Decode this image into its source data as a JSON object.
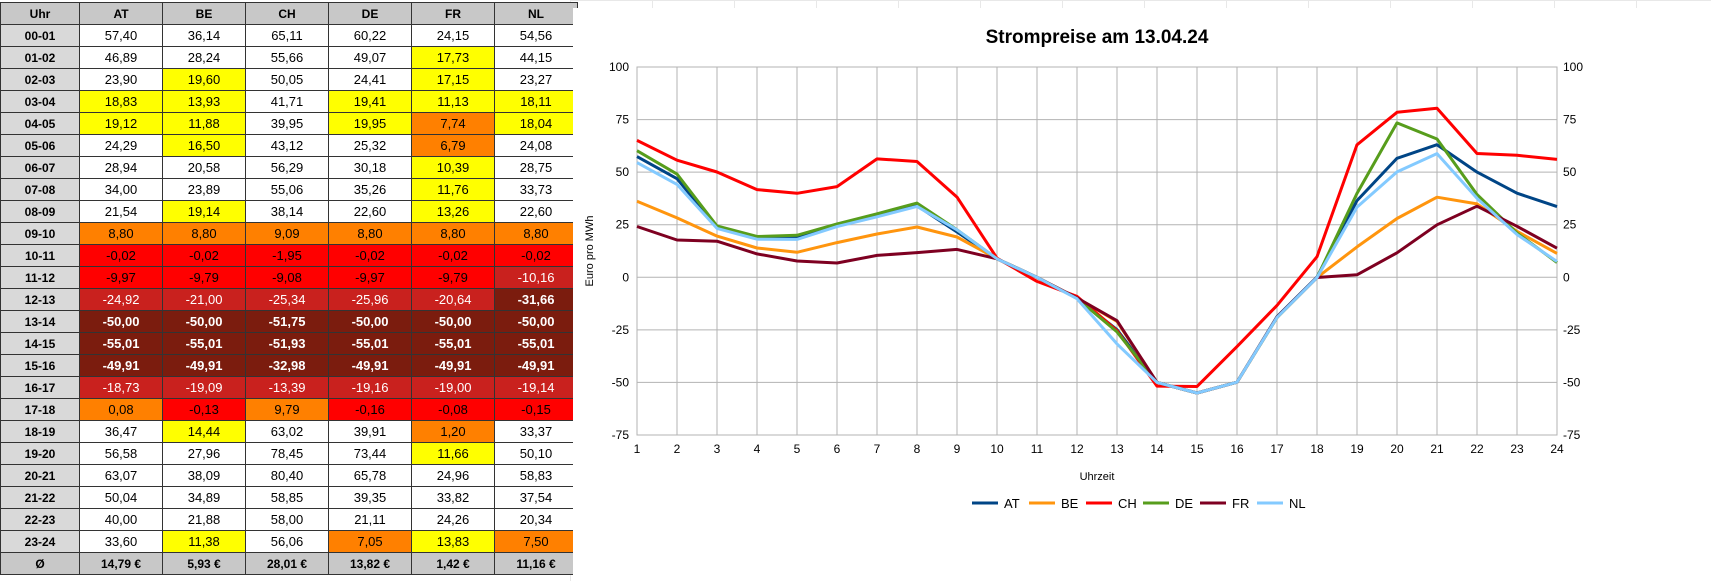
{
  "table": {
    "header": [
      "Uhr",
      "AT",
      "BE",
      "CH",
      "DE",
      "FR",
      "NL"
    ],
    "rows": [
      {
        "hour": "00-01",
        "vals": [
          "57,40",
          "36,14",
          "65,11",
          "60,22",
          "24,15",
          "54,56"
        ],
        "cls": [
          "w",
          "w",
          "w",
          "w",
          "w",
          "w"
        ]
      },
      {
        "hour": "01-02",
        "vals": [
          "46,89",
          "28,24",
          "55,66",
          "49,07",
          "17,73",
          "44,15"
        ],
        "cls": [
          "w",
          "w",
          "w",
          "w",
          "y",
          "w"
        ]
      },
      {
        "hour": "02-03",
        "vals": [
          "23,90",
          "19,60",
          "50,05",
          "24,41",
          "17,15",
          "23,27"
        ],
        "cls": [
          "w",
          "y",
          "w",
          "w",
          "y",
          "w"
        ]
      },
      {
        "hour": "03-04",
        "vals": [
          "18,83",
          "13,93",
          "41,71",
          "19,41",
          "11,13",
          "18,11"
        ],
        "cls": [
          "y",
          "y",
          "w",
          "y",
          "y",
          "y"
        ]
      },
      {
        "hour": "04-05",
        "vals": [
          "19,12",
          "11,88",
          "39,95",
          "19,95",
          "7,74",
          "18,04"
        ],
        "cls": [
          "y",
          "y",
          "w",
          "y",
          "o",
          "y"
        ]
      },
      {
        "hour": "05-06",
        "vals": [
          "24,29",
          "16,50",
          "43,12",
          "25,32",
          "6,79",
          "24,08"
        ],
        "cls": [
          "w",
          "y",
          "w",
          "w",
          "o",
          "w"
        ]
      },
      {
        "hour": "06-07",
        "vals": [
          "28,94",
          "20,58",
          "56,29",
          "30,18",
          "10,39",
          "28,75"
        ],
        "cls": [
          "w",
          "w",
          "w",
          "w",
          "y",
          "w"
        ]
      },
      {
        "hour": "07-08",
        "vals": [
          "34,00",
          "23,89",
          "55,06",
          "35,26",
          "11,76",
          "33,73"
        ],
        "cls": [
          "w",
          "w",
          "w",
          "w",
          "y",
          "w"
        ]
      },
      {
        "hour": "08-09",
        "vals": [
          "21,54",
          "19,14",
          "38,14",
          "22,60",
          "13,26",
          "22,60"
        ],
        "cls": [
          "w",
          "y",
          "w",
          "w",
          "y",
          "w"
        ]
      },
      {
        "hour": "09-10",
        "vals": [
          "8,80",
          "8,80",
          "9,09",
          "8,80",
          "8,80",
          "8,80"
        ],
        "cls": [
          "o",
          "o",
          "o",
          "o",
          "o",
          "o"
        ]
      },
      {
        "hour": "10-11",
        "vals": [
          "-0,02",
          "-0,02",
          "-1,95",
          "-0,02",
          "-0,02",
          "-0,02"
        ],
        "cls": [
          "r",
          "r",
          "r",
          "r",
          "r",
          "r"
        ]
      },
      {
        "hour": "11-12",
        "vals": [
          "-9,97",
          "-9,79",
          "-9,08",
          "-9,97",
          "-9,79",
          "-10,16"
        ],
        "cls": [
          "r",
          "r",
          "r",
          "r",
          "r",
          "dr"
        ]
      },
      {
        "hour": "12-13",
        "vals": [
          "-24,92",
          "-21,00",
          "-25,34",
          "-25,96",
          "-20,64",
          "-31,66"
        ],
        "cls": [
          "dr",
          "dr",
          "dr",
          "dr",
          "dr",
          "db"
        ]
      },
      {
        "hour": "13-14",
        "vals": [
          "-50,00",
          "-50,00",
          "-51,75",
          "-50,00",
          "-50,00",
          "-50,00"
        ],
        "cls": [
          "db",
          "db",
          "db",
          "db",
          "db",
          "db"
        ]
      },
      {
        "hour": "14-15",
        "vals": [
          "-55,01",
          "-55,01",
          "-51,93",
          "-55,01",
          "-55,01",
          "-55,01"
        ],
        "cls": [
          "db",
          "db",
          "db",
          "db",
          "db",
          "db"
        ]
      },
      {
        "hour": "15-16",
        "vals": [
          "-49,91",
          "-49,91",
          "-32,98",
          "-49,91",
          "-49,91",
          "-49,91"
        ],
        "cls": [
          "db",
          "db",
          "db",
          "db",
          "db",
          "db"
        ]
      },
      {
        "hour": "16-17",
        "vals": [
          "-18,73",
          "-19,09",
          "-13,39",
          "-19,16",
          "-19,00",
          "-19,14"
        ],
        "cls": [
          "dr",
          "dr",
          "dr",
          "dr",
          "dr",
          "dr"
        ]
      },
      {
        "hour": "17-18",
        "vals": [
          "0,08",
          "-0,13",
          "9,79",
          "-0,16",
          "-0,08",
          "-0,15"
        ],
        "cls": [
          "o",
          "r",
          "o",
          "r",
          "r",
          "r"
        ]
      },
      {
        "hour": "18-19",
        "vals": [
          "36,47",
          "14,44",
          "63,02",
          "39,91",
          "1,20",
          "33,37"
        ],
        "cls": [
          "w",
          "y",
          "w",
          "w",
          "o",
          "w"
        ]
      },
      {
        "hour": "19-20",
        "vals": [
          "56,58",
          "27,96",
          "78,45",
          "73,44",
          "11,66",
          "50,10"
        ],
        "cls": [
          "w",
          "w",
          "w",
          "w",
          "y",
          "w"
        ]
      },
      {
        "hour": "20-21",
        "vals": [
          "63,07",
          "38,09",
          "80,40",
          "65,78",
          "24,96",
          "58,83"
        ],
        "cls": [
          "w",
          "w",
          "w",
          "w",
          "w",
          "w"
        ]
      },
      {
        "hour": "21-22",
        "vals": [
          "50,04",
          "34,89",
          "58,85",
          "39,35",
          "33,82",
          "37,54"
        ],
        "cls": [
          "w",
          "w",
          "w",
          "w",
          "w",
          "w"
        ]
      },
      {
        "hour": "22-23",
        "vals": [
          "40,00",
          "21,88",
          "58,00",
          "21,11",
          "24,26",
          "20,34"
        ],
        "cls": [
          "w",
          "w",
          "w",
          "w",
          "w",
          "w"
        ]
      },
      {
        "hour": "23-24",
        "vals": [
          "33,60",
          "11,38",
          "56,06",
          "7,05",
          "13,83",
          "7,50"
        ],
        "cls": [
          "w",
          "y",
          "w",
          "o",
          "y",
          "o"
        ]
      }
    ],
    "avg_label": "Ø",
    "averages": [
      "14,79 €",
      "5,93 €",
      "28,01 €",
      "13,82 €",
      "1,42 €",
      "11,16 €"
    ],
    "cell_colors": {
      "w": {
        "bg": "#ffffff",
        "fg": "#000000",
        "bold": false
      },
      "y": {
        "bg": "#ffff00",
        "fg": "#000000",
        "bold": false
      },
      "o": {
        "bg": "#ff8000",
        "fg": "#000000",
        "bold": false
      },
      "r": {
        "bg": "#ff0000",
        "fg": "#000000",
        "bold": false
      },
      "dr": {
        "bg": "#c9211e",
        "fg": "#ffffff",
        "bold": false
      },
      "db": {
        "bg": "#7b1c0e",
        "fg": "#ffffff",
        "bold": true
      }
    }
  },
  "chart_data": {
    "type": "line",
    "title": "Strompreise am 13.04.24",
    "xlabel": "Uhrzeit",
    "ylabel": "Euro pro MWh",
    "x": [
      1,
      2,
      3,
      4,
      5,
      6,
      7,
      8,
      9,
      10,
      11,
      12,
      13,
      14,
      15,
      16,
      17,
      18,
      19,
      20,
      21,
      22,
      23,
      24
    ],
    "ylim": [
      -75,
      100
    ],
    "yticks": [
      -75,
      -50,
      -25,
      0,
      25,
      50,
      75,
      100
    ],
    "grid": true,
    "legend": "bottom",
    "secondary_y_axis": true,
    "series": [
      {
        "name": "AT",
        "color": "#004586",
        "values": [
          57.4,
          46.89,
          23.9,
          18.83,
          19.12,
          24.29,
          28.94,
          34.0,
          21.54,
          8.8,
          -0.02,
          -9.97,
          -24.92,
          -50.0,
          -55.01,
          -49.91,
          -18.73,
          0.08,
          36.47,
          56.58,
          63.07,
          50.04,
          40.0,
          33.6
        ]
      },
      {
        "name": "BE",
        "color": "#ff950e",
        "values": [
          36.14,
          28.24,
          19.6,
          13.93,
          11.88,
          16.5,
          20.58,
          23.89,
          19.14,
          8.8,
          -0.02,
          -9.79,
          -21.0,
          -50.0,
          -55.01,
          -49.91,
          -19.09,
          -0.13,
          14.44,
          27.96,
          38.09,
          34.89,
          21.88,
          11.38
        ]
      },
      {
        "name": "CH",
        "color": "#ff0000",
        "values": [
          65.11,
          55.66,
          50.05,
          41.71,
          39.95,
          43.12,
          56.29,
          55.06,
          38.14,
          9.09,
          -1.95,
          -9.08,
          -25.34,
          -51.75,
          -51.93,
          -32.98,
          -13.39,
          9.79,
          63.02,
          78.45,
          80.4,
          58.85,
          58.0,
          56.06
        ]
      },
      {
        "name": "DE",
        "color": "#579d1c",
        "values": [
          60.22,
          49.07,
          24.41,
          19.41,
          19.95,
          25.32,
          30.18,
          35.26,
          22.6,
          8.8,
          -0.02,
          -9.97,
          -25.96,
          -50.0,
          -55.01,
          -49.91,
          -19.16,
          -0.16,
          39.91,
          73.44,
          65.78,
          39.35,
          21.11,
          7.05
        ]
      },
      {
        "name": "FR",
        "color": "#7e0021",
        "values": [
          24.15,
          17.73,
          17.15,
          11.13,
          7.74,
          6.79,
          10.39,
          11.76,
          13.26,
          8.8,
          -0.02,
          -9.79,
          -20.64,
          -50.0,
          -55.01,
          -49.91,
          -19.0,
          -0.08,
          1.2,
          11.66,
          24.96,
          33.82,
          24.26,
          13.83
        ]
      },
      {
        "name": "NL",
        "color": "#83caff",
        "values": [
          54.56,
          44.15,
          23.27,
          18.11,
          18.04,
          24.08,
          28.75,
          33.73,
          22.6,
          8.8,
          -0.02,
          -10.16,
          -31.66,
          -50.0,
          -55.01,
          -49.91,
          -19.14,
          -0.15,
          33.37,
          50.1,
          58.83,
          37.54,
          20.34,
          7.5
        ]
      }
    ]
  }
}
